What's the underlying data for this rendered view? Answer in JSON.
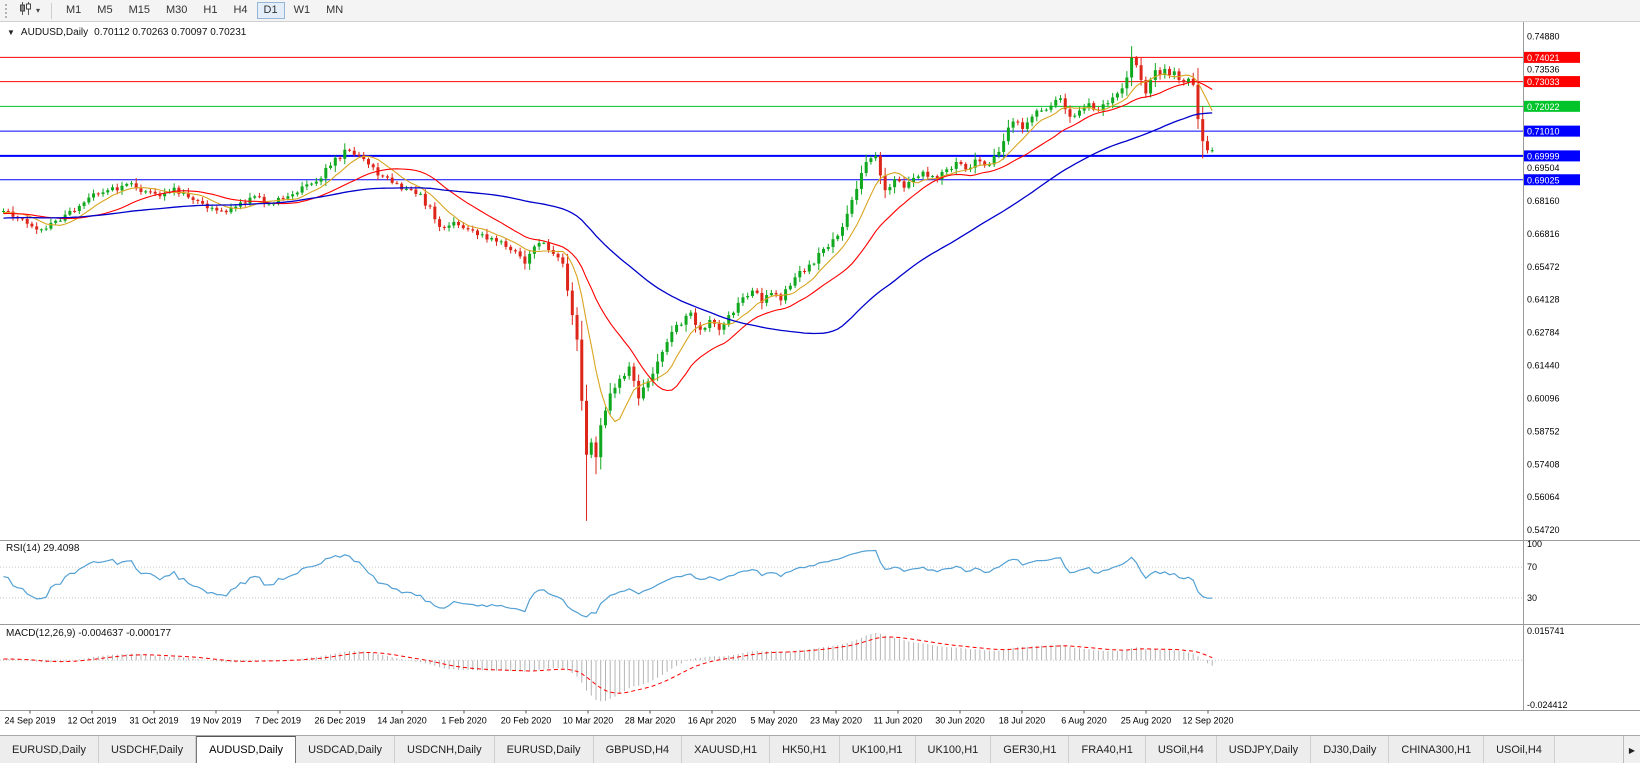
{
  "toolbar": {
    "timeframes": [
      {
        "label": "M1",
        "active": false
      },
      {
        "label": "M5",
        "active": false
      },
      {
        "label": "M15",
        "active": false
      },
      {
        "label": "M30",
        "active": false
      },
      {
        "label": "H1",
        "active": false
      },
      {
        "label": "H4",
        "active": false
      },
      {
        "label": "D1",
        "active": true
      },
      {
        "label": "W1",
        "active": false
      },
      {
        "label": "MN",
        "active": false
      }
    ]
  },
  "chart": {
    "dropdown_glyph": "▼",
    "symbol": "AUDUSD,Daily",
    "ohlc": "0.70112 0.70263 0.70097 0.70231",
    "rsi_label": "RSI(14) 29.4098",
    "macd_label": "MACD(12,26,9) -0.004637 -0.000177"
  },
  "chart_data": {
    "type": "candlestick",
    "symbol": "AUDUSD",
    "period": "Daily",
    "ohlc_current": {
      "open": 0.70112,
      "high": 0.70263,
      "low": 0.70097,
      "close": 0.70231
    },
    "price_axis": {
      "top_value": 0.7522,
      "bottom_value": 0.544,
      "labels": [
        "0.74880",
        "0.73536",
        "0.72192",
        "0.70848",
        "0.69504",
        "0.68160",
        "0.66816",
        "0.65472",
        "0.64128",
        "0.62784",
        "0.61440",
        "0.60096",
        "0.58752",
        "0.57408",
        "0.56064",
        "0.54720"
      ]
    },
    "hlines": [
      {
        "value": 0.74021,
        "label": "0.74021",
        "color": "#ff0000",
        "width": 1
      },
      {
        "value": 0.73033,
        "label": "0.73033",
        "color": "#ff0000",
        "width": 1
      },
      {
        "value": 0.72022,
        "label": "0.72022",
        "color": "#00c42a",
        "width": 1
      },
      {
        "value": 0.7101,
        "label": "0.71010",
        "color": "#0000ff",
        "width": 1
      },
      {
        "value": 0.69999,
        "label": "0.69999",
        "color": "#0000ff",
        "width": 2
      },
      {
        "value": 0.69025,
        "label": "0.69025",
        "color": "#0000ff",
        "width": 1
      }
    ],
    "date_labels": [
      "24 Sep 2019",
      "12 Oct 2019",
      "31 Oct 2019",
      "19 Nov 2019",
      "7 Dec 2019",
      "26 Dec 2019",
      "14 Jan 2020",
      "1 Feb 2020",
      "20 Feb 2020",
      "10 Mar 2020",
      "28 Mar 2020",
      "16 Apr 2020",
      "5 May 2020",
      "23 May 2020",
      "11 Jun 2020",
      "30 Jun 2020",
      "18 Jul 2020",
      "6 Aug 2020",
      "25 Aug 2020",
      "12 Sep 2020"
    ],
    "num_candles": 256,
    "candle_anchors": [
      [
        0,
        0.6775
      ],
      [
        3,
        0.6745
      ],
      [
        6,
        0.6712
      ],
      [
        8,
        0.67
      ],
      [
        11,
        0.6735
      ],
      [
        14,
        0.6775
      ],
      [
        18,
        0.683
      ],
      [
        22,
        0.686
      ],
      [
        27,
        0.6888
      ],
      [
        30,
        0.6855
      ],
      [
        33,
        0.6835
      ],
      [
        36,
        0.687
      ],
      [
        40,
        0.682
      ],
      [
        44,
        0.6788
      ],
      [
        47,
        0.677
      ],
      [
        50,
        0.681
      ],
      [
        53,
        0.6835
      ],
      [
        56,
        0.6805
      ],
      [
        59,
        0.6825
      ],
      [
        62,
        0.685
      ],
      [
        66,
        0.6895
      ],
      [
        69,
        0.696
      ],
      [
        72,
        0.7025
      ],
      [
        74,
        0.7005
      ],
      [
        77,
        0.6965
      ],
      [
        79,
        0.692
      ],
      [
        82,
        0.689
      ],
      [
        85,
        0.6865
      ],
      [
        88,
        0.6845
      ],
      [
        92,
        0.671
      ],
      [
        95,
        0.673
      ],
      [
        98,
        0.67
      ],
      [
        101,
        0.668
      ],
      [
        104,
        0.665
      ],
      [
        107,
        0.6615
      ],
      [
        110,
        0.656
      ],
      [
        112,
        0.663
      ],
      [
        114,
        0.6645
      ],
      [
        116,
        0.66
      ],
      [
        118,
        0.656
      ],
      [
        119,
        0.645
      ],
      [
        120,
        0.635,
        0.631
      ],
      [
        121,
        0.625
      ],
      [
        122,
        0.6,
        0.596
      ],
      [
        123,
        0.578,
        0.551
      ],
      [
        124,
        0.583
      ],
      [
        125,
        0.577,
        0.57
      ],
      [
        126,
        0.59
      ],
      [
        127,
        0.596
      ],
      [
        128,
        0.603
      ],
      [
        130,
        0.609
      ],
      [
        132,
        0.614
      ],
      [
        134,
        0.601
      ],
      [
        136,
        0.608
      ],
      [
        138,
        0.616
      ],
      [
        140,
        0.624
      ],
      [
        142,
        0.631
      ],
      [
        145,
        0.636
      ],
      [
        147,
        0.629
      ],
      [
        149,
        0.633
      ],
      [
        151,
        0.629
      ],
      [
        153,
        0.635
      ],
      [
        155,
        0.64
      ],
      [
        158,
        0.645
      ],
      [
        160,
        0.64
      ],
      [
        162,
        0.644
      ],
      [
        164,
        0.641
      ],
      [
        166,
        0.647
      ],
      [
        168,
        0.653
      ],
      [
        171,
        0.656
      ],
      [
        173,
        0.662
      ],
      [
        175,
        0.666
      ],
      [
        177,
        0.671
      ],
      [
        179,
        0.682
      ],
      [
        181,
        0.693
      ],
      [
        183,
        0.699
      ],
      [
        184,
        0.7
      ],
      [
        185,
        0.692
      ],
      [
        186,
        0.686
      ],
      [
        188,
        0.6905
      ],
      [
        190,
        0.687
      ],
      [
        192,
        0.691
      ],
      [
        194,
        0.6935
      ],
      [
        197,
        0.6905
      ],
      [
        199,
        0.6945
      ],
      [
        201,
        0.6975
      ],
      [
        203,
        0.6945
      ],
      [
        205,
        0.6985
      ],
      [
        207,
        0.696
      ],
      [
        209,
        0.7
      ],
      [
        211,
        0.706
      ],
      [
        213,
        0.714
      ],
      [
        215,
        0.711
      ],
      [
        217,
        0.716
      ],
      [
        219,
        0.7185
      ],
      [
        221,
        0.7205
      ],
      [
        223,
        0.7235
      ],
      [
        225,
        0.716
      ],
      [
        227,
        0.7185
      ],
      [
        229,
        0.7215
      ],
      [
        231,
        0.7185
      ],
      [
        233,
        0.7215
      ],
      [
        235,
        0.7255
      ],
      [
        237,
        0.732
      ],
      [
        238,
        0.74,
        null,
        0.7448
      ],
      [
        239,
        0.737
      ],
      [
        240,
        0.731
      ],
      [
        241,
        0.7255
      ],
      [
        242,
        0.731
      ],
      [
        243,
        0.735
      ],
      [
        244,
        0.733
      ],
      [
        245,
        0.7355
      ],
      [
        246,
        0.733
      ],
      [
        247,
        0.7345
      ],
      [
        248,
        0.731
      ],
      [
        249,
        0.73
      ],
      [
        250,
        0.7315
      ],
      [
        251,
        0.729
      ],
      [
        252,
        0.715
      ],
      [
        253,
        0.706,
        0.699
      ],
      [
        254,
        0.7023
      ],
      [
        255,
        0.7023
      ]
    ],
    "colors": {
      "up": "#10a81e",
      "down": "#dd2619",
      "ma_fast": "#d9a520",
      "ma_mid": "#ff0000",
      "ma_slow": "#0000cc",
      "rsi": "#53a0d4",
      "rsi_level": "#c8c8c8",
      "macd_hist": "#b4b4b4",
      "macd_signal": "#ff0000"
    },
    "ma_periods": {
      "fast": 8,
      "mid": 20,
      "slow": 55
    },
    "rsi": {
      "period": 14,
      "current": 29.4098,
      "scale_labels": [
        "100",
        "70",
        "30"
      ],
      "scale_values": [
        100,
        70,
        30
      ],
      "levels": [
        70,
        30
      ]
    },
    "macd": {
      "fast": 12,
      "slow": 26,
      "signal": 9,
      "current": [
        -0.004637,
        -0.000177
      ],
      "axis_labels": [
        "0.015741",
        "-0.024412"
      ],
      "axis_values": [
        0.015741,
        -0.024412
      ],
      "range_top": 0.0175,
      "range_bottom": -0.0265
    }
  },
  "tabs": {
    "items": [
      {
        "label": "EURUSD,Daily",
        "active": false
      },
      {
        "label": "USDCHF,Daily",
        "active": false
      },
      {
        "label": "AUDUSD,Daily",
        "active": true
      },
      {
        "label": "USDCAD,Daily",
        "active": false
      },
      {
        "label": "USDCNH,Daily",
        "active": false
      },
      {
        "label": "EURUSD,Daily",
        "active": false
      },
      {
        "label": "GBPUSD,H4",
        "active": false
      },
      {
        "label": "XAUUSD,H1",
        "active": false
      },
      {
        "label": "HK50,H1",
        "active": false
      },
      {
        "label": "UK100,H1",
        "active": false
      },
      {
        "label": "UK100,H1",
        "active": false
      },
      {
        "label": "GER30,H1",
        "active": false
      },
      {
        "label": "FRA40,H1",
        "active": false
      },
      {
        "label": "USOil,H4",
        "active": false
      },
      {
        "label": "USDJPY,Daily",
        "active": false
      },
      {
        "label": "DJ30,Daily",
        "active": false
      },
      {
        "label": "CHINA300,H1",
        "active": false
      },
      {
        "label": "USOil,H4",
        "active": false
      }
    ],
    "scroll_right_glyph": "▶"
  }
}
